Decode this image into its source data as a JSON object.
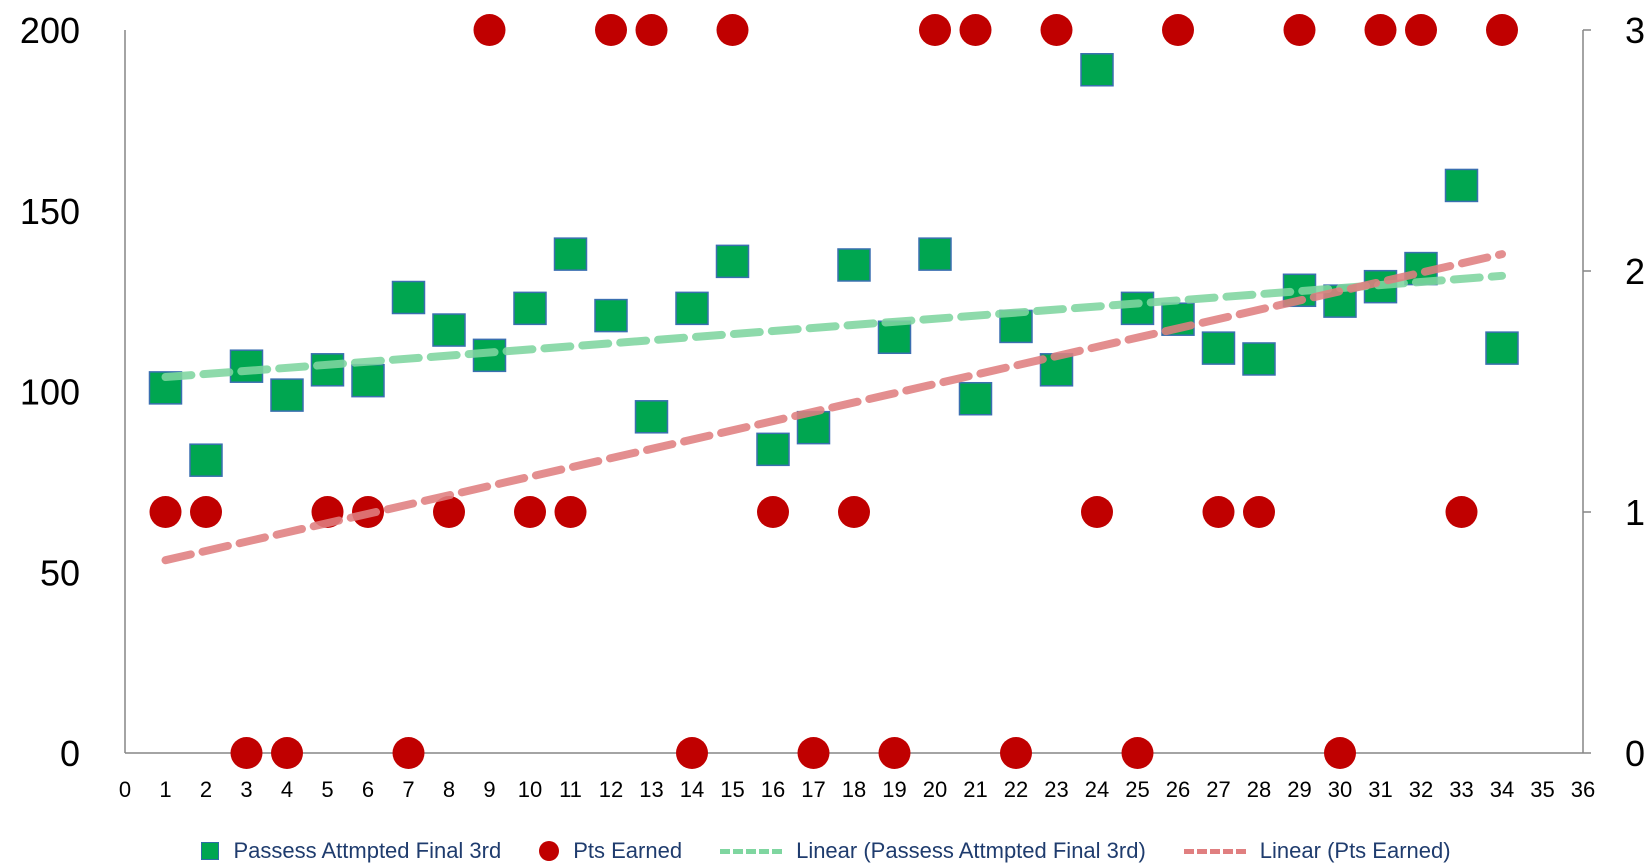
{
  "chart_data": {
    "type": "scatter",
    "title": "",
    "xlabel": "",
    "ylabel": "",
    "xlim": [
      0,
      36
    ],
    "x_ticks": [
      0,
      1,
      2,
      3,
      4,
      5,
      6,
      7,
      8,
      9,
      10,
      11,
      12,
      13,
      14,
      15,
      16,
      17,
      18,
      19,
      20,
      21,
      22,
      23,
      24,
      25,
      26,
      27,
      28,
      29,
      30,
      31,
      32,
      33,
      34,
      35,
      36
    ],
    "y_left": {
      "lim": [
        0,
        200
      ],
      "ticks": [
        0,
        50,
        100,
        150,
        200
      ]
    },
    "y_right": {
      "lim": [
        0,
        3
      ],
      "ticks": [
        0,
        1,
        2,
        3
      ]
    },
    "grid": false,
    "legend_position": "bottom",
    "series": [
      {
        "name": "Passess Attmpted Final 3rd",
        "axis": "left",
        "marker": "square",
        "color": "#00a650",
        "x": [
          1,
          2,
          3,
          4,
          5,
          6,
          7,
          8,
          9,
          10,
          11,
          12,
          13,
          14,
          15,
          16,
          17,
          18,
          19,
          20,
          21,
          22,
          23,
          24,
          25,
          26,
          27,
          28,
          29,
          30,
          31,
          32,
          33,
          34
        ],
        "values": [
          101,
          81,
          107,
          99,
          106,
          103,
          126,
          117,
          110,
          123,
          138,
          121,
          93,
          123,
          136,
          84,
          90,
          135,
          115,
          138,
          98,
          118,
          106,
          189,
          123,
          120,
          112,
          109,
          128,
          125,
          129,
          134,
          157,
          112
        ]
      },
      {
        "name": "Pts Earned",
        "axis": "right",
        "marker": "circle",
        "color": "#c00000",
        "x": [
          1,
          2,
          3,
          4,
          5,
          6,
          7,
          8,
          9,
          10,
          11,
          12,
          13,
          14,
          15,
          16,
          17,
          18,
          19,
          20,
          21,
          22,
          23,
          24,
          25,
          26,
          27,
          28,
          29,
          30,
          31,
          32,
          33,
          34
        ],
        "values": [
          1,
          1,
          0,
          0,
          1,
          1,
          0,
          1,
          3,
          1,
          1,
          3,
          3,
          0,
          3,
          1,
          0,
          1,
          0,
          3,
          3,
          0,
          3,
          1,
          0,
          3,
          1,
          1,
          3,
          0,
          3,
          3,
          1,
          3
        ]
      }
    ],
    "trendlines": [
      {
        "name": "Linear (Passess Attmpted Final 3rd)",
        "of": "Passess Attmpted Final 3rd",
        "axis": "left",
        "type": "linear",
        "color": "#7fd6a0",
        "x_range": [
          1,
          34
        ],
        "y_range": [
          104,
          132
        ]
      },
      {
        "name": "Linear (Pts Earned)",
        "of": "Pts Earned",
        "axis": "right",
        "type": "linear",
        "color": "#e07f80",
        "x_range": [
          1,
          34
        ],
        "y_range": [
          0.8,
          2.07
        ]
      }
    ]
  }
}
